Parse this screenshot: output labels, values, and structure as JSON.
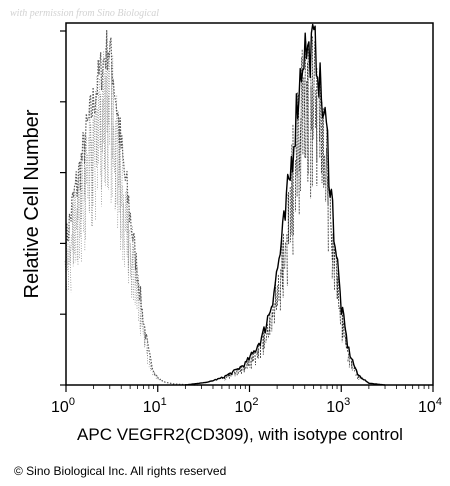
{
  "watermark": "with permission from Sino Biological",
  "copyright": "© Sino Biological Inc. All rights reserved",
  "chart_data": {
    "type": "area",
    "title": "",
    "xlabel": "APC VEGFR2(CD309), with isotype control",
    "ylabel": "Relative Cell Number",
    "xscale": "log",
    "xlim": [
      1,
      10000
    ],
    "ylim": [
      0,
      100
    ],
    "ytick_count": 6,
    "grid": false,
    "xticks": [
      {
        "value": 1,
        "base": "10",
        "exp": "0"
      },
      {
        "value": 10,
        "base": "10",
        "exp": "1"
      },
      {
        "value": 100,
        "base": "10",
        "exp": "2"
      },
      {
        "value": 1000,
        "base": "10",
        "exp": "3"
      },
      {
        "value": 10000,
        "base": "10",
        "exp": "4"
      }
    ],
    "series": [
      {
        "role": "isotype control",
        "style": "dotted",
        "color": "#555555",
        "x": [
          1,
          1.2,
          1.45,
          1.7,
          2.0,
          2.3,
          2.6,
          2.9,
          3.2,
          3.6,
          4.2,
          5.0,
          6.0,
          7.0,
          8.0,
          9.0,
          10,
          12,
          15,
          20,
          25,
          30
        ],
        "y": [
          40,
          52,
          62,
          72,
          80,
          87,
          92,
          96,
          90,
          78,
          62,
          48,
          32,
          18,
          9,
          4,
          2,
          0.8,
          0.3,
          0.1,
          0,
          0
        ]
      },
      {
        "role": "VEGFR2 (CD309)",
        "style": "solid",
        "color": "#000000",
        "x": [
          20,
          35,
          50,
          70,
          90,
          110,
          140,
          170,
          200,
          240,
          280,
          320,
          360,
          400,
          450,
          500,
          550,
          600,
          700,
          800,
          900,
          1000,
          1200,
          1500,
          2000,
          3000
        ],
        "y": [
          0,
          0.8,
          2,
          4,
          6,
          9,
          14,
          22,
          32,
          45,
          60,
          76,
          88,
          96,
          93,
          97,
          92,
          82,
          70,
          50,
          35,
          22,
          10,
          3,
          0.5,
          0
        ]
      }
    ]
  }
}
